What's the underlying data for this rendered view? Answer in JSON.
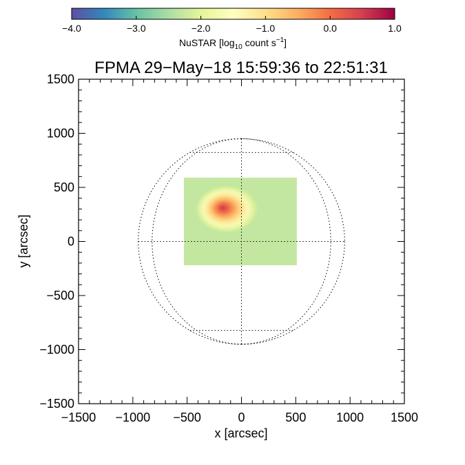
{
  "chart_data": {
    "type": "heatmap",
    "title": "FPMA 29−May−18 15:59:36 to 22:51:31",
    "xlabel": "x [arcsec]",
    "ylabel": "y [arcsec]",
    "xlim": [
      -1500,
      1500
    ],
    "ylim": [
      -1500,
      1500
    ],
    "x_ticks": [
      -1500,
      -1000,
      -500,
      0,
      500,
      1000,
      1500
    ],
    "x_tick_labels": [
      "−1500",
      "−1000",
      "−500",
      "0",
      "500",
      "1000",
      "1500"
    ],
    "y_ticks": [
      1500,
      1000,
      500,
      0,
      -500,
      -1000,
      -1500
    ],
    "y_tick_labels": [
      "1500",
      "1000",
      "500",
      "0",
      "−500",
      "−1000",
      "−1500"
    ],
    "minor_tick_step": 100,
    "solar_disk": {
      "radius_arcsec": 950,
      "grid_line_style": "dotted",
      "longitudes_deg": [
        -60,
        0,
        60
      ],
      "latitudes_deg": [
        -60,
        0,
        60
      ]
    },
    "observed_region": {
      "x_range": [
        -530,
        510
      ],
      "y_range": [
        -220,
        590
      ]
    },
    "emission_peak": {
      "x": -170,
      "y": 310,
      "peak_log_rate": 0.6,
      "background_log_rate": -2.3
    },
    "colorbar": {
      "label_main": "NuSTAR [log",
      "label_sub": "10",
      "label_mid": " count s",
      "label_sup": "−1",
      "label_end": "]",
      "range": [
        -4.0,
        1.0
      ],
      "ticks": [
        -4.0,
        -3.0,
        -2.0,
        -1.0,
        0.0,
        1.0
      ],
      "tick_labels": [
        "−4.0",
        "−3.0",
        "−2.0",
        "−1.0",
        "0.0",
        "1.0"
      ],
      "colormap": "spectral_r",
      "colors": [
        "#5e4fa2",
        "#3288bd",
        "#66c2a5",
        "#abdda4",
        "#e6f598",
        "#ffffbf",
        "#fee08b",
        "#fdae61",
        "#f46d43",
        "#d53e4f",
        "#9e0142"
      ]
    }
  }
}
